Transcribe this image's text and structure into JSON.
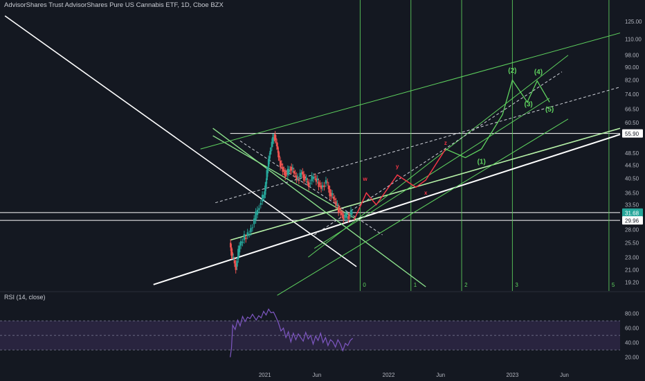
{
  "title": "AdvisorShares Trust AdvisorShares Pure US Cannabis ETF, 1D, Cboe BZX",
  "rsi_title": "RSI (14, close)",
  "colors": {
    "background": "#141821",
    "axis_text": "#b2b5be",
    "up_candle": "#26a69a",
    "down_candle": "#ef5350",
    "drawing_white": "#ffffff",
    "drawing_green": "#5fd35f",
    "wave_red": "#f23645",
    "rsi_line": "#7e57c2",
    "rsi_band": "#3a2f5a",
    "price_tag_current": "#26a69a"
  },
  "chart_data": [
    {
      "type": "candlestick",
      "price_scale": {
        "scale": "log",
        "ticks": [
          "125.00",
          "110.00",
          "98.00",
          "90.00",
          "82.00",
          "74.00",
          "66.50",
          "60.50",
          "48.50",
          "44.50",
          "40.50",
          "36.50",
          "33.50",
          "28.00",
          "25.50",
          "23.00",
          "21.00",
          "19.20"
        ],
        "tick_values": [
          125,
          110,
          98,
          90,
          82,
          74,
          66.5,
          60.5,
          48.5,
          44.5,
          40.5,
          36.5,
          33.5,
          28,
          25.5,
          23,
          21,
          19.2
        ],
        "ylim": [
          18.6,
          140
        ]
      },
      "time_axis": {
        "labels": [
          "2021",
          "Jun",
          "2022",
          "Jun",
          "2023",
          "Jun"
        ],
        "label_x": [
          2021.0,
          2021.42,
          2022.0,
          2022.42,
          2023.0,
          2023.42
        ],
        "xlim": [
          2018.86,
          2023.87
        ]
      },
      "price_tags": [
        {
          "label": "55.90",
          "value": 55.9,
          "style": "white"
        },
        {
          "label": "31.68",
          "value": 31.68,
          "style": "current"
        },
        {
          "label": "29.96",
          "value": 29.96,
          "style": "white"
        }
      ],
      "horizontal_levels": [
        {
          "value": 55.9,
          "x_start": 2020.72
        },
        {
          "value": 31.68,
          "x_start": 2018.86
        },
        {
          "value": 29.96,
          "x_start": 2018.86
        }
      ],
      "price_path": [
        [
          2020.72,
          25.5
        ],
        [
          2020.74,
          23.0
        ],
        [
          2020.77,
          21.5
        ],
        [
          2020.8,
          25.0
        ],
        [
          2020.84,
          26.5
        ],
        [
          2020.88,
          27.5
        ],
        [
          2020.92,
          30.0
        ],
        [
          2020.96,
          33.5
        ],
        [
          2021.0,
          36.0
        ],
        [
          2021.02,
          42.0
        ],
        [
          2021.04,
          48.0
        ],
        [
          2021.06,
          52.0
        ],
        [
          2021.08,
          55.5
        ],
        [
          2021.1,
          51.0
        ],
        [
          2021.12,
          46.0
        ],
        [
          2021.15,
          43.0
        ],
        [
          2021.18,
          41.5
        ],
        [
          2021.21,
          44.0
        ],
        [
          2021.24,
          42.0
        ],
        [
          2021.27,
          40.0
        ],
        [
          2021.3,
          42.5
        ],
        [
          2021.33,
          40.0
        ],
        [
          2021.36,
          39.0
        ],
        [
          2021.4,
          41.0
        ],
        [
          2021.43,
          39.5
        ],
        [
          2021.46,
          38.0
        ],
        [
          2021.5,
          39.5
        ],
        [
          2021.53,
          36.5
        ],
        [
          2021.56,
          35.0
        ],
        [
          2021.59,
          33.0
        ],
        [
          2021.62,
          31.5
        ],
        [
          2021.65,
          30.5
        ],
        [
          2021.68,
          31.0
        ],
        [
          2021.71,
          31.7
        ]
      ],
      "wave_labels": [
        {
          "label": "w",
          "x": 2021.81,
          "y": 39.8
        },
        {
          "label": "y",
          "x": 2022.07,
          "y": 43.5
        },
        {
          "label": "x",
          "x": 2022.3,
          "y": 36.0
        },
        {
          "label": "z",
          "x": 2022.46,
          "y": 51.5
        },
        {
          "label": "(1)",
          "x": 2022.75,
          "y": 45.0
        },
        {
          "label": "(2)",
          "x": 2023.0,
          "y": 86.5
        },
        {
          "label": "(3)",
          "x": 2023.13,
          "y": 68.0
        },
        {
          "label": "(4)",
          "x": 2023.21,
          "y": 85.5
        },
        {
          "label": "(5)",
          "x": 2023.3,
          "y": 65.5
        }
      ],
      "fib_time_labels": [
        {
          "label": "0",
          "x": 2021.77
        },
        {
          "label": "1",
          "x": 2022.18
        },
        {
          "label": "2",
          "x": 2022.59
        },
        {
          "label": "3",
          "x": 2023.0
        },
        {
          "label": "5",
          "x": 2023.78
        }
      ]
    },
    {
      "type": "line",
      "title": "RSI (14, close)",
      "yticks": [
        "80.00",
        "60.00",
        "40.00",
        "20.00"
      ],
      "ytick_values": [
        80,
        60,
        40,
        20
      ],
      "ylim": [
        13,
        92
      ],
      "bands": {
        "upper": 70,
        "middle": 50,
        "lower": 30
      },
      "series": [
        {
          "name": "RSI",
          "values": [
            [
              2020.72,
              20
            ],
            [
              2020.73,
              32
            ],
            [
              2020.74,
              64
            ],
            [
              2020.76,
              58
            ],
            [
              2020.78,
              71
            ],
            [
              2020.8,
              63
            ],
            [
              2020.82,
              76
            ],
            [
              2020.84,
              69
            ],
            [
              2020.86,
              75
            ],
            [
              2020.88,
              73
            ],
            [
              2020.9,
              79
            ],
            [
              2020.93,
              71
            ],
            [
              2020.95,
              77
            ],
            [
              2020.97,
              74
            ],
            [
              2020.99,
              83
            ],
            [
              2021.01,
              78
            ],
            [
              2021.03,
              86
            ],
            [
              2021.05,
              81
            ],
            [
              2021.07,
              82
            ],
            [
              2021.09,
              75
            ],
            [
              2021.11,
              67
            ],
            [
              2021.13,
              56
            ],
            [
              2021.15,
              60
            ],
            [
              2021.17,
              47
            ],
            [
              2021.19,
              55
            ],
            [
              2021.21,
              41
            ],
            [
              2021.23,
              53
            ],
            [
              2021.25,
              44
            ],
            [
              2021.27,
              52
            ],
            [
              2021.29,
              47
            ],
            [
              2021.31,
              42
            ],
            [
              2021.33,
              54
            ],
            [
              2021.35,
              45
            ],
            [
              2021.37,
              50
            ],
            [
              2021.39,
              38
            ],
            [
              2021.41,
              49
            ],
            [
              2021.43,
              43
            ],
            [
              2021.45,
              53
            ],
            [
              2021.47,
              40
            ],
            [
              2021.49,
              47
            ],
            [
              2021.51,
              36
            ],
            [
              2021.53,
              44
            ],
            [
              2021.55,
              41
            ],
            [
              2021.57,
              34
            ],
            [
              2021.59,
              44
            ],
            [
              2021.61,
              38
            ],
            [
              2021.63,
              29
            ],
            [
              2021.65,
              39
            ],
            [
              2021.67,
              36
            ],
            [
              2021.69,
              43
            ],
            [
              2021.71,
              46
            ]
          ]
        }
      ]
    }
  ]
}
